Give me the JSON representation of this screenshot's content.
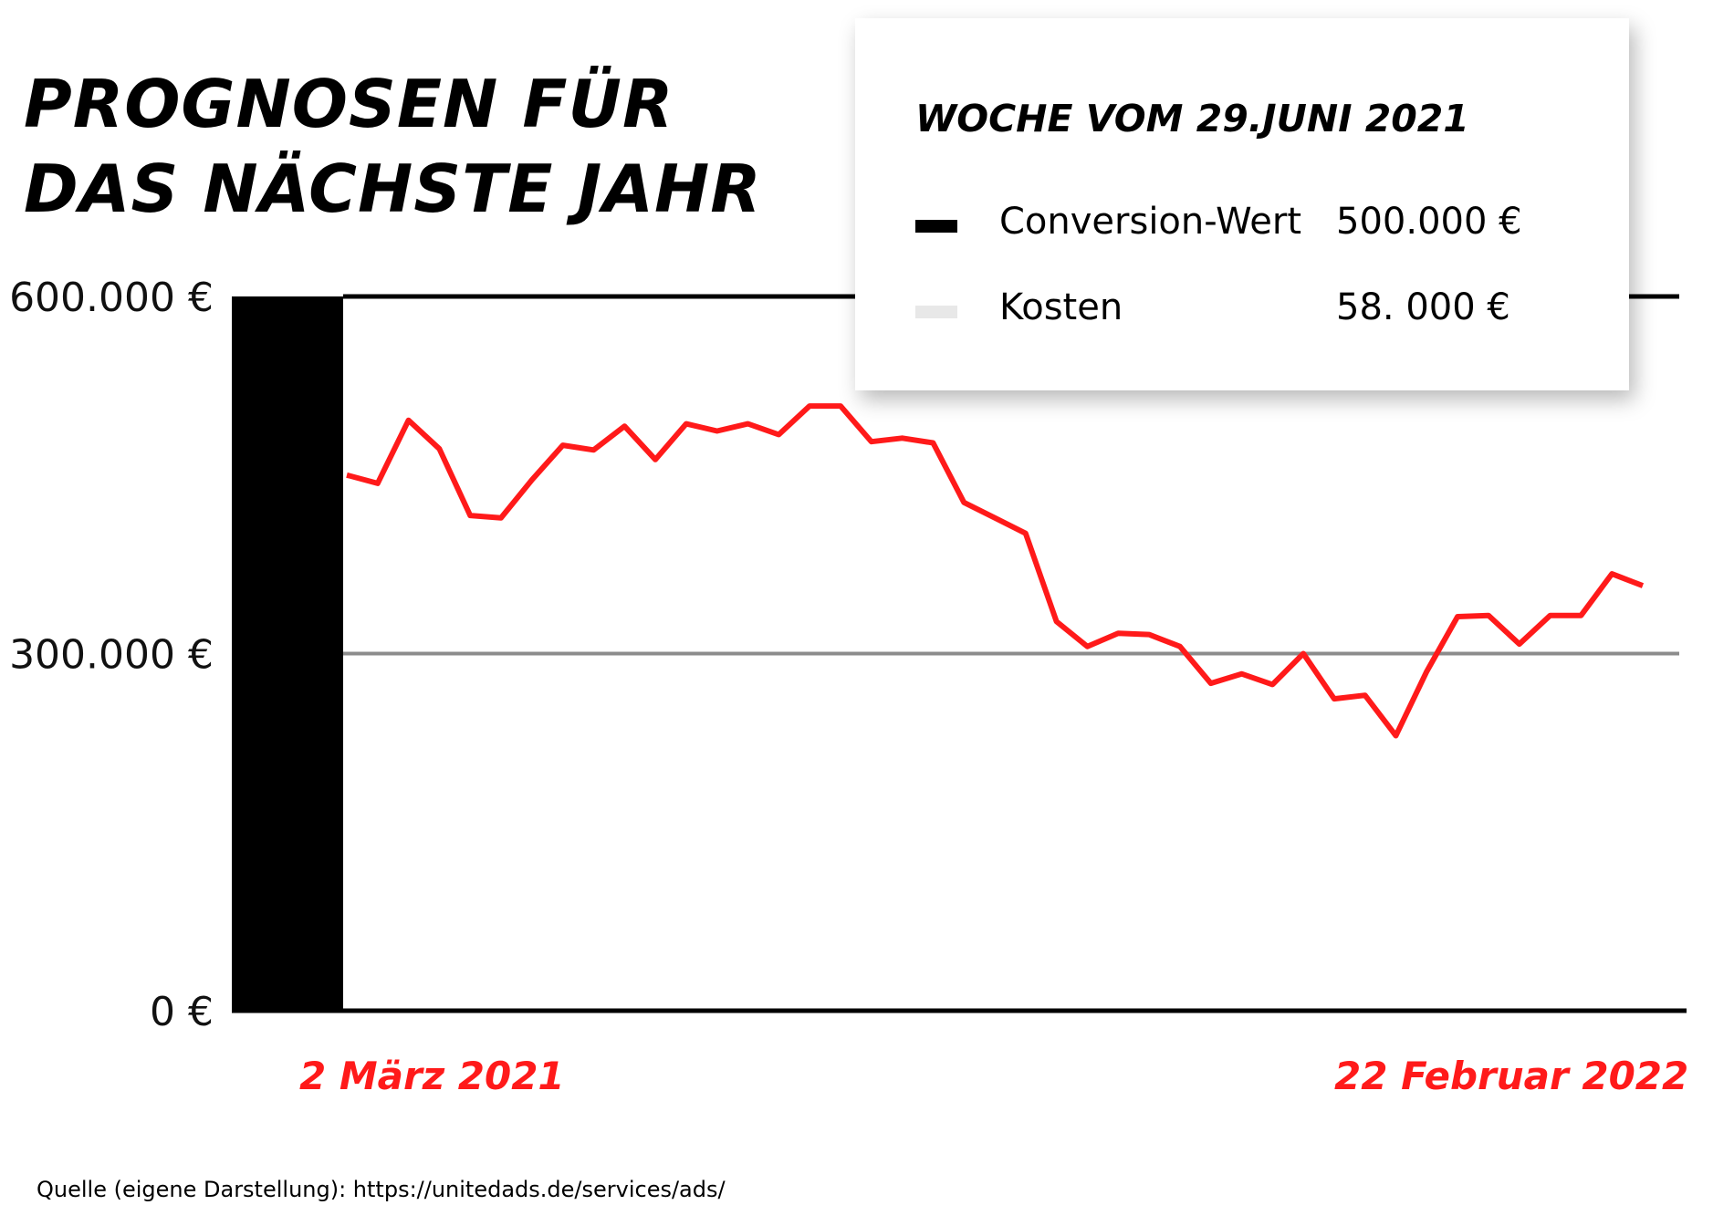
{
  "title": {
    "line1": "PROGNOSEN FÜR",
    "line2": "DAS NÄCHSTE JAHR"
  },
  "source": "Quelle (eigene Darstellung): https://unitedads.de/services/ads/",
  "legend": {
    "title": "WOCHE VOM 29.JUNI 2021",
    "items": [
      {
        "name": "Conversion-Wert",
        "value": "500.000 €",
        "color": "#000000"
      },
      {
        "name": "Kosten",
        "value": "58. 000 €",
        "color": "#e8e8e8"
      }
    ]
  },
  "x_labels": {
    "start": "2 März 2021",
    "end": "22 Februar 2022"
  },
  "colors": {
    "line": "#ff1a1a",
    "bar": "#000000",
    "reference_line": "#8c8c8c",
    "axis": "#000000"
  },
  "chart_data": {
    "type": "line",
    "x_start": "2 März 2021",
    "x_end": "22 Februar 2022",
    "ylim": [
      0,
      600000
    ],
    "y_ticks": [
      {
        "value": 0,
        "label": "0 €"
      },
      {
        "value": 300000,
        "label": "300.000 €"
      },
      {
        "value": 600000,
        "label": "600.000 €"
      }
    ],
    "reference_lines": [
      300000,
      600000
    ],
    "bar": {
      "value": 600000
    },
    "series": [
      {
        "color": "#ff1a1a",
        "values": [
          450000,
          443000,
          496000,
          472000,
          416000,
          414000,
          446000,
          475000,
          471000,
          491000,
          463000,
          493000,
          487000,
          493000,
          484000,
          508000,
          508000,
          478000,
          481000,
          477000,
          427000,
          414000,
          401000,
          327000,
          306000,
          317000,
          316000,
          306000,
          275000,
          283000,
          274000,
          300000,
          262000,
          265000,
          231000,
          285000,
          331000,
          332000,
          308000,
          332000,
          332000,
          367000,
          357000
        ]
      }
    ]
  }
}
